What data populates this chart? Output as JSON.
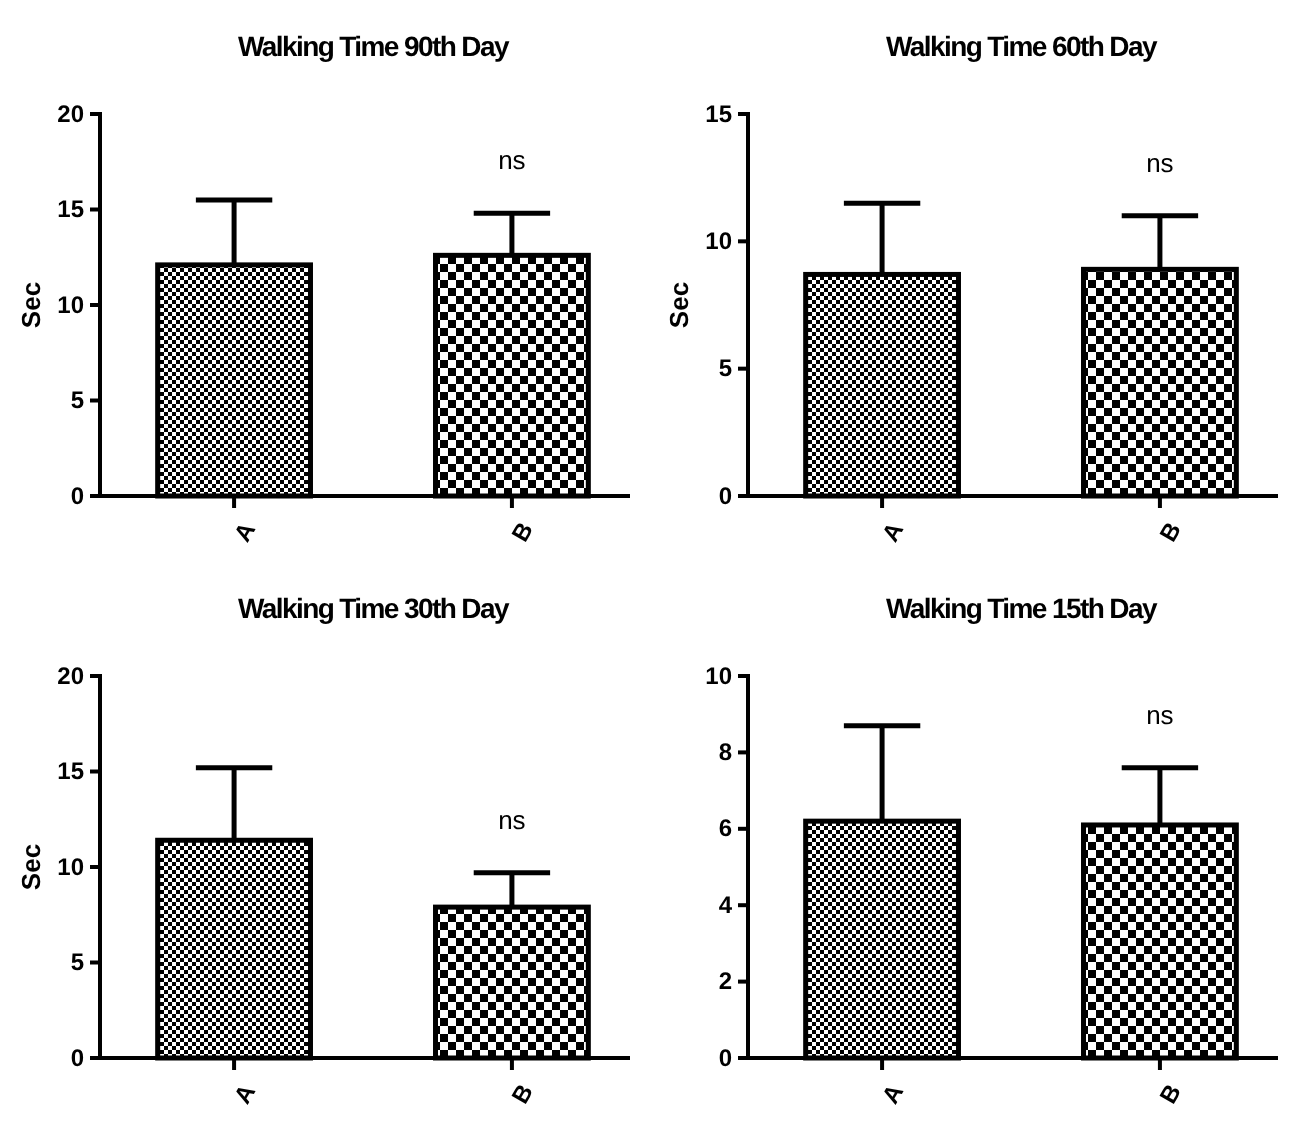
{
  "chart_data": [
    {
      "type": "bar",
      "title": "Walking Time 90th Day",
      "ylabel": "Sec",
      "categories": [
        "A",
        "B"
      ],
      "values": [
        12.1,
        12.6
      ],
      "errors": [
        [
          12.1,
          15.5
        ],
        [
          12.6,
          14.8
        ]
      ],
      "colors": [
        "#000000",
        "#000000"
      ],
      "ylim": [
        0,
        20
      ],
      "yticks": [
        0,
        5,
        10,
        15,
        20
      ],
      "annotations": [
        "ns"
      ]
    },
    {
      "type": "bar",
      "title": "Walking Time 60th Day",
      "ylabel": "Sec",
      "categories": [
        "A",
        "B"
      ],
      "values": [
        8.7,
        8.9
      ],
      "errors": [
        [
          8.7,
          11.5
        ],
        [
          8.9,
          11.0
        ]
      ],
      "colors": [
        "#000000",
        "#000000"
      ],
      "ylim": [
        0,
        15
      ],
      "yticks": [
        0,
        5,
        10,
        15
      ],
      "annotations": [
        "ns"
      ]
    },
    {
      "type": "bar",
      "title": "Walking Time 30th Day",
      "ylabel": "Sec",
      "categories": [
        "A",
        "B"
      ],
      "values": [
        11.4,
        7.9
      ],
      "errors": [
        [
          11.4,
          15.2
        ],
        [
          7.9,
          9.7
        ]
      ],
      "colors": [
        "#000000",
        "#000000"
      ],
      "ylim": [
        0,
        20
      ],
      "yticks": [
        0,
        5,
        10,
        15,
        20
      ],
      "annotations": [
        "ns"
      ]
    },
    {
      "type": "bar",
      "title": "Walking Time 15th Day",
      "categories": [
        "A",
        "B"
      ],
      "values": [
        6.2,
        6.1
      ],
      "errors": [
        [
          6.2,
          8.7
        ],
        [
          6.1,
          7.6
        ]
      ],
      "colors": [
        "#000000",
        "#000000"
      ],
      "ylim": [
        0,
        10
      ],
      "yticks": [
        0,
        2,
        4,
        6,
        8,
        10
      ],
      "annotations": [
        "ns"
      ]
    }
  ]
}
